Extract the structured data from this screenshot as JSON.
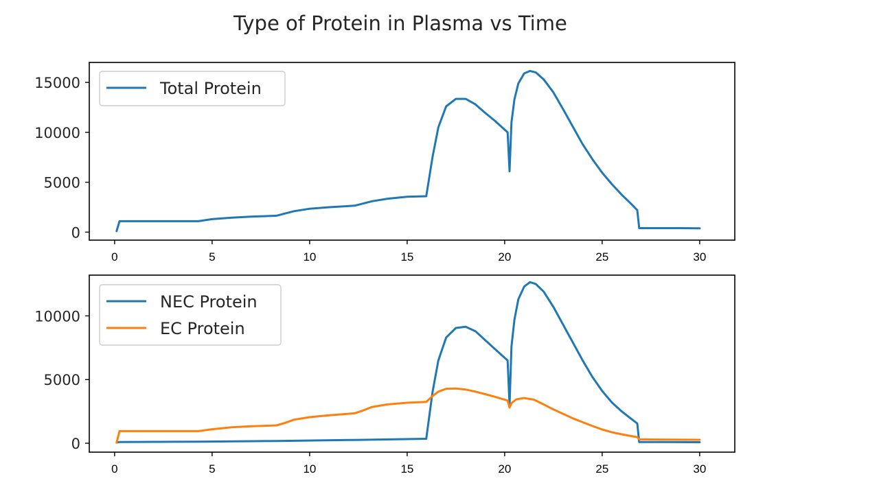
{
  "chart_data": [
    {
      "type": "line",
      "title": "Type of Protein in Plasma vs Time",
      "xlabel": "",
      "ylabel": "",
      "xlim": [
        -1.3,
        31.8
      ],
      "ylim": [
        -800,
        17000
      ],
      "xticks": [
        0,
        5,
        10,
        15,
        20,
        25,
        30
      ],
      "yticks": [
        0,
        5000,
        10000,
        15000
      ],
      "grid": false,
      "legend_position": "top-left",
      "series": [
        {
          "name": "Total Protein",
          "color": "#1f77b4",
          "x": [
            0.1,
            0.25,
            1,
            2,
            3,
            4.3,
            5,
            6,
            7,
            8.3,
            8.7,
            9.2,
            10,
            11,
            12.3,
            12.7,
            13.2,
            14,
            15,
            15.98,
            16.3,
            16.6,
            17,
            17.5,
            18,
            18.5,
            19,
            19.5,
            20.15,
            20.25,
            20.35,
            20.5,
            20.7,
            21,
            21.3,
            21.6,
            22,
            22.5,
            23,
            23.5,
            24,
            24.5,
            25,
            25.5,
            26,
            26.5,
            26.8,
            26.9,
            27.5,
            28,
            29,
            30
          ],
          "y": [
            100,
            1100,
            1100,
            1100,
            1100,
            1100,
            1300,
            1450,
            1550,
            1650,
            1850,
            2100,
            2350,
            2500,
            2650,
            2850,
            3100,
            3350,
            3550,
            3600,
            7500,
            10500,
            12600,
            13350,
            13350,
            12800,
            11950,
            11150,
            10000,
            6100,
            11000,
            13300,
            14900,
            15900,
            16150,
            16000,
            15300,
            14000,
            12300,
            10550,
            8800,
            7300,
            5950,
            4800,
            3750,
            2800,
            2200,
            400,
            400,
            400,
            400,
            380
          ]
        }
      ]
    },
    {
      "type": "line",
      "title": "",
      "xlabel": "",
      "ylabel": "",
      "xlim": [
        -1.3,
        31.8
      ],
      "ylim": [
        -700,
        13200
      ],
      "xticks": [
        0,
        5,
        10,
        15,
        20,
        25,
        30
      ],
      "yticks": [
        0,
        5000,
        10000
      ],
      "grid": false,
      "legend_position": "top-left",
      "series": [
        {
          "name": "NEC Protein",
          "color": "#1f77b4",
          "x": [
            0.1,
            0.25,
            4.3,
            8.3,
            12.3,
            15.98,
            16.3,
            16.6,
            17,
            17.5,
            18,
            18.5,
            19,
            19.5,
            20.15,
            20.25,
            20.35,
            20.5,
            20.7,
            21,
            21.3,
            21.6,
            22,
            22.5,
            23,
            23.5,
            24,
            24.5,
            25,
            25.5,
            26,
            26.5,
            26.8,
            26.9,
            28,
            30
          ],
          "y": [
            50,
            100,
            120,
            180,
            260,
            350,
            4000,
            6500,
            8300,
            9050,
            9150,
            8800,
            8100,
            7400,
            6500,
            2950,
            7600,
            9700,
            11300,
            12300,
            12650,
            12500,
            11900,
            10700,
            9300,
            7900,
            6500,
            5200,
            4100,
            3200,
            2500,
            1900,
            1550,
            90,
            90,
            80
          ]
        },
        {
          "name": "EC Protein",
          "color": "#ff7f0e",
          "x": [
            0.1,
            0.25,
            1,
            2,
            3,
            4.3,
            5,
            6,
            7,
            8.3,
            8.7,
            9.2,
            10,
            11,
            12.3,
            12.7,
            13.2,
            14,
            15,
            15.98,
            16.3,
            16.6,
            17,
            17.5,
            18,
            18.5,
            19,
            19.5,
            20.15,
            20.25,
            20.35,
            20.6,
            21,
            21.5,
            22,
            22.5,
            23,
            23.5,
            24,
            24.5,
            25,
            25.5,
            26,
            26.5,
            26.8,
            26.9,
            28,
            30
          ],
          "y": [
            50,
            950,
            950,
            950,
            950,
            950,
            1100,
            1250,
            1330,
            1400,
            1580,
            1850,
            2050,
            2200,
            2350,
            2550,
            2850,
            3050,
            3180,
            3250,
            3700,
            4050,
            4280,
            4300,
            4220,
            4050,
            3850,
            3650,
            3350,
            2800,
            3150,
            3450,
            3550,
            3420,
            3050,
            2650,
            2300,
            1950,
            1650,
            1350,
            1080,
            860,
            700,
            560,
            480,
            300,
            290,
            270
          ]
        }
      ]
    }
  ]
}
